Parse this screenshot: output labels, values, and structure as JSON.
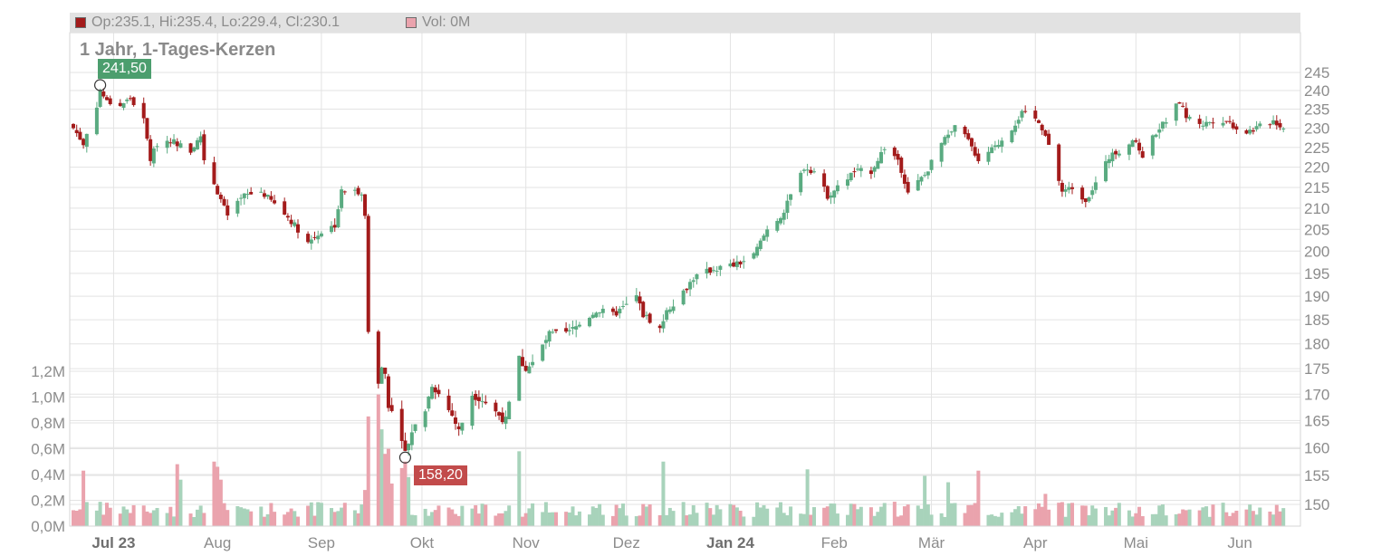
{
  "header": {
    "ohlc_text": "Op:235.1, Hi:235.4, Lo:229.4, Cl:230.1",
    "vol_text": "Vol: 0M",
    "title": "1 Jahr, 1-Tages-Kerzen"
  },
  "markers": {
    "high_label": "241,50",
    "low_label": "158,20"
  },
  "colors": {
    "up": "#5aab81",
    "down": "#a31b1b",
    "vol_up": "#a8d3bb",
    "vol_down": "#eaa3ad",
    "high_label_bg": "#4c9e6e",
    "low_label_bg": "#c24b4b",
    "grid": "#e3e3e3",
    "axis_text": "#8c8c8c"
  },
  "chart_data": {
    "type": "candlestick",
    "title": "1 Jahr, 1-Tages-Kerzen",
    "price_axis": {
      "side": "right",
      "scale": "log",
      "ticks": [
        150,
        155,
        160,
        165,
        170,
        175,
        180,
        185,
        190,
        195,
        200,
        205,
        210,
        215,
        220,
        225,
        230,
        235,
        240,
        245
      ],
      "range": [
        146,
        252
      ]
    },
    "volume_axis": {
      "side": "left",
      "ticks": [
        "0,0M",
        "0,2M",
        "0,4M",
        "0,6M",
        "0,8M",
        "1,0M",
        "1,2M"
      ],
      "tick_values": [
        0,
        0.2,
        0.4,
        0.6,
        0.8,
        1.0,
        1.2
      ],
      "range": [
        0,
        1.2
      ]
    },
    "x_axis": {
      "labels": [
        "Jul 23",
        "Aug",
        "Sep",
        "Okt",
        "Nov",
        "Dez",
        "Jan 24",
        "Feb",
        "Mär",
        "Apr",
        "Mai",
        "Jun"
      ],
      "bold_labels": [
        "Jul 23",
        "Jan 24"
      ],
      "label_dates": [
        "2023-07-01",
        "2023-08-01",
        "2023-09-01",
        "2023-10-01",
        "2023-11-01",
        "2023-12-01",
        "2024-01-01",
        "2024-02-01",
        "2024-03-01",
        "2024-04-01",
        "2024-05-01",
        "2024-06-01"
      ]
    },
    "grid": true,
    "annotations": [
      {
        "text": "241,50",
        "type": "high",
        "value": 241.5,
        "date": "2023-06-27"
      },
      {
        "text": "158,20",
        "type": "low",
        "value": 158.2,
        "date": "2023-09-26"
      }
    ],
    "close_anchors": [
      [
        "2023-06-19",
        230
      ],
      [
        "2023-06-22",
        226
      ],
      [
        "2023-06-26",
        236
      ],
      [
        "2023-06-27",
        240
      ],
      [
        "2023-06-29",
        237
      ],
      [
        "2023-07-03",
        236
      ],
      [
        "2023-07-06",
        238
      ],
      [
        "2023-07-10",
        232
      ],
      [
        "2023-07-12",
        222
      ],
      [
        "2023-07-14",
        226
      ],
      [
        "2023-07-18",
        227
      ],
      [
        "2023-07-24",
        224
      ],
      [
        "2023-07-27",
        228
      ],
      [
        "2023-07-28",
        222
      ],
      [
        "2023-08-01",
        214
      ],
      [
        "2023-08-04",
        208
      ],
      [
        "2023-08-09",
        213
      ],
      [
        "2023-08-14",
        214
      ],
      [
        "2023-08-18",
        211
      ],
      [
        "2023-08-23",
        207
      ],
      [
        "2023-08-28",
        202
      ],
      [
        "2023-08-31",
        204
      ],
      [
        "2023-09-05",
        206
      ],
      [
        "2023-09-07",
        214
      ],
      [
        "2023-09-11",
        214
      ],
      [
        "2023-09-13",
        214
      ],
      [
        "2023-09-14",
        208
      ],
      [
        "2023-09-15",
        183
      ],
      [
        "2023-09-18",
        172
      ],
      [
        "2023-09-19",
        175
      ],
      [
        "2023-09-20",
        174
      ],
      [
        "2023-09-21",
        168
      ],
      [
        "2023-09-25",
        162
      ],
      [
        "2023-09-26",
        159
      ],
      [
        "2023-09-28",
        163
      ],
      [
        "2023-10-02",
        167
      ],
      [
        "2023-10-04",
        172
      ],
      [
        "2023-10-06",
        170
      ],
      [
        "2023-10-10",
        166
      ],
      [
        "2023-10-12",
        163
      ],
      [
        "2023-10-16",
        170
      ],
      [
        "2023-10-19",
        169
      ],
      [
        "2023-10-24",
        166
      ],
      [
        "2023-10-26",
        165
      ],
      [
        "2023-10-30",
        177
      ],
      [
        "2023-11-01",
        175
      ],
      [
        "2023-11-03",
        176
      ],
      [
        "2023-11-08",
        182
      ],
      [
        "2023-11-13",
        182
      ],
      [
        "2023-11-17",
        184
      ],
      [
        "2023-11-22",
        187
      ],
      [
        "2023-11-27",
        186
      ],
      [
        "2023-12-01",
        188
      ],
      [
        "2023-12-04",
        190
      ],
      [
        "2023-12-06",
        186
      ],
      [
        "2023-12-08",
        185
      ],
      [
        "2023-12-11",
        183
      ],
      [
        "2023-12-13",
        187
      ],
      [
        "2023-12-18",
        191
      ],
      [
        "2023-12-21",
        194
      ],
      [
        "2023-12-27",
        196
      ],
      [
        "2024-01-03",
        197
      ],
      [
        "2024-01-08",
        199
      ],
      [
        "2024-01-12",
        205
      ],
      [
        "2024-01-17",
        209
      ],
      [
        "2024-01-19",
        213
      ],
      [
        "2024-01-23",
        220
      ],
      [
        "2024-01-26",
        219
      ],
      [
        "2024-01-30",
        213
      ],
      [
        "2024-02-02",
        215
      ],
      [
        "2024-02-07",
        219
      ],
      [
        "2024-02-12",
        219
      ],
      [
        "2024-02-16",
        225
      ],
      [
        "2024-02-20",
        222
      ],
      [
        "2024-02-23",
        214
      ],
      [
        "2024-02-28",
        218
      ],
      [
        "2024-03-04",
        226
      ],
      [
        "2024-03-08",
        230
      ],
      [
        "2024-03-11",
        228
      ],
      [
        "2024-03-15",
        222
      ],
      [
        "2024-03-20",
        225
      ],
      [
        "2024-03-25",
        230
      ],
      [
        "2024-03-28",
        234
      ],
      [
        "2024-04-02",
        232
      ],
      [
        "2024-04-04",
        228
      ],
      [
        "2024-04-09",
        214
      ],
      [
        "2024-04-12",
        215
      ],
      [
        "2024-04-16",
        212
      ],
      [
        "2024-04-19",
        216
      ],
      [
        "2024-04-24",
        224
      ],
      [
        "2024-04-26",
        224
      ],
      [
        "2024-04-30",
        227
      ],
      [
        "2024-05-03",
        223
      ],
      [
        "2024-05-07",
        229
      ],
      [
        "2024-05-10",
        232
      ],
      [
        "2024-05-14",
        237
      ],
      [
        "2024-05-16",
        233
      ],
      [
        "2024-05-21",
        231
      ],
      [
        "2024-05-24",
        232
      ],
      [
        "2024-05-28",
        232
      ],
      [
        "2024-05-31",
        230
      ],
      [
        "2024-06-03",
        229
      ],
      [
        "2024-06-06",
        230
      ],
      [
        "2024-06-11",
        232
      ],
      [
        "2024-06-14",
        230
      ]
    ],
    "volume_spikes": [
      [
        "2023-06-22",
        0.43
      ],
      [
        "2023-07-20",
        0.48
      ],
      [
        "2023-07-21",
        0.36
      ],
      [
        "2023-07-31",
        0.5
      ],
      [
        "2023-08-01",
        0.46
      ],
      [
        "2023-08-02",
        0.36
      ],
      [
        "2023-09-14",
        0.28
      ],
      [
        "2023-09-15",
        0.85
      ],
      [
        "2023-09-18",
        1.02
      ],
      [
        "2023-09-19",
        0.75
      ],
      [
        "2023-09-20",
        0.56
      ],
      [
        "2023-09-21",
        0.6
      ],
      [
        "2023-09-22",
        0.33
      ],
      [
        "2023-09-25",
        0.45
      ],
      [
        "2023-09-26",
        0.5
      ],
      [
        "2023-09-27",
        0.38
      ],
      [
        "2023-10-30",
        0.58
      ],
      [
        "2023-12-12",
        0.5
      ],
      [
        "2024-01-24",
        0.44
      ],
      [
        "2024-02-28",
        0.39
      ],
      [
        "2024-03-06",
        0.34
      ],
      [
        "2024-03-15",
        0.43
      ],
      [
        "2024-04-04",
        0.25
      ],
      [
        "2024-06-17",
        0.34
      ]
    ]
  }
}
